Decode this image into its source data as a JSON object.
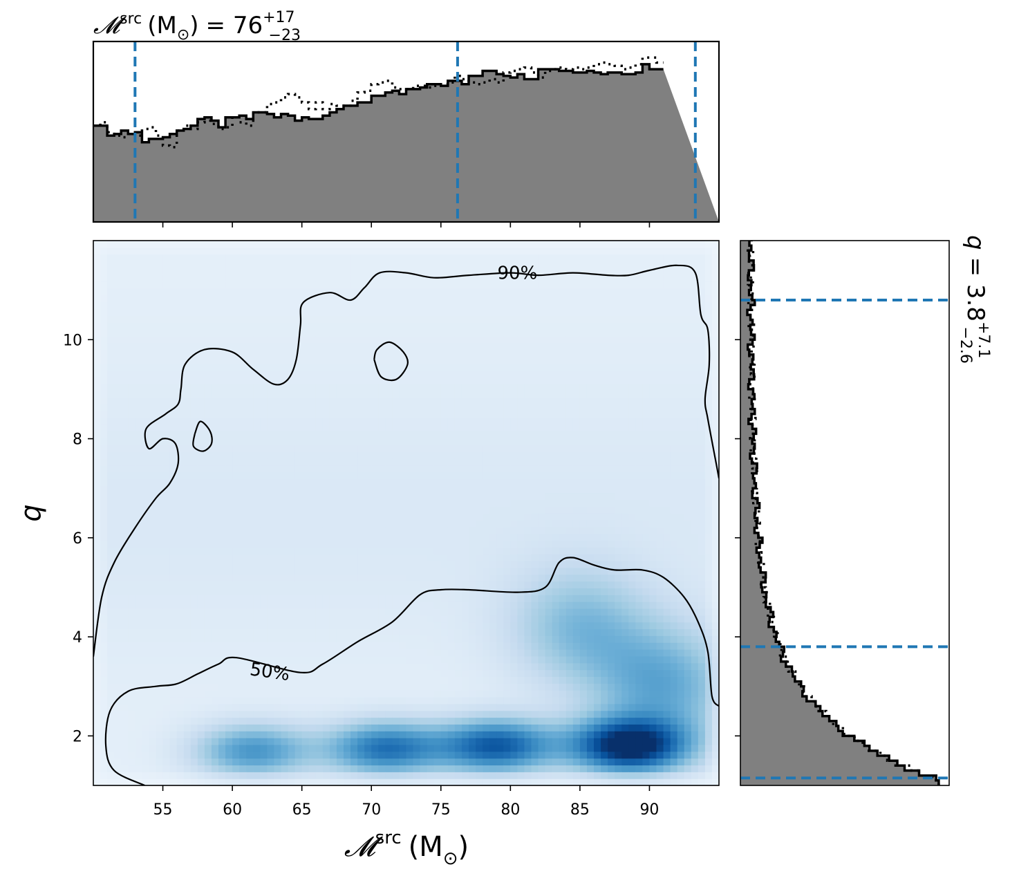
{
  "chart_data": {
    "type": "corner-plot",
    "joint": {
      "type": "heatmap",
      "xlabel": {
        "symbol": "𝓜",
        "sup": "src",
        "unit": "(M",
        "sub": "⊙",
        "close": ")"
      },
      "ylabel": "q",
      "xlim": [
        50,
        95
      ],
      "ylim": [
        1,
        12
      ],
      "xticks": [
        55,
        60,
        65,
        70,
        75,
        80,
        85,
        90
      ],
      "yticks": [
        2,
        4,
        6,
        8,
        10
      ],
      "colormap": [
        "#f7fbff",
        "#deebf7",
        "#c6dbef",
        "#9ecae1",
        "#6baed6",
        "#4292c6",
        "#2171b5",
        "#08519c",
        "#08306b"
      ],
      "density_modes": [
        {
          "x": 88.5,
          "y": 1.8,
          "weight": 1.0
        },
        {
          "x": 79.0,
          "y": 1.8,
          "weight": 0.8
        },
        {
          "x": 71.0,
          "y": 1.75,
          "weight": 0.7
        },
        {
          "x": 61.5,
          "y": 1.7,
          "weight": 0.55
        },
        {
          "x": 91.0,
          "y": 3.0,
          "weight": 0.45
        },
        {
          "x": 85.0,
          "y": 4.2,
          "weight": 0.35
        }
      ],
      "contours": [
        {
          "label": "90%",
          "label_pos": [
            80.5,
            11.35
          ],
          "paths": [
            [
              [
                50.0,
                3.6
              ],
              [
                50.6,
                4.8
              ],
              [
                51.5,
                5.5
              ],
              [
                53.0,
                6.2
              ],
              [
                54.5,
                6.8
              ],
              [
                55.5,
                7.1
              ],
              [
                56.1,
                7.5
              ],
              [
                55.9,
                7.9
              ],
              [
                55.0,
                8.0
              ],
              [
                54.0,
                7.8
              ],
              [
                53.8,
                8.2
              ],
              [
                55.2,
                8.5
              ],
              [
                56.1,
                8.7
              ],
              [
                56.3,
                9.0
              ],
              [
                56.6,
                9.5
              ],
              [
                58.0,
                9.8
              ],
              [
                60.0,
                9.75
              ],
              [
                61.5,
                9.4
              ],
              [
                63.0,
                9.1
              ],
              [
                64.0,
                9.2
              ],
              [
                64.6,
                9.6
              ],
              [
                64.9,
                10.3
              ],
              [
                65.1,
                10.75
              ],
              [
                67.0,
                10.95
              ],
              [
                68.5,
                10.8
              ],
              [
                69.5,
                11.05
              ],
              [
                70.6,
                11.35
              ],
              [
                72.5,
                11.35
              ],
              [
                74.5,
                11.25
              ],
              [
                77.0,
                11.3
              ],
              [
                80.0,
                11.35
              ],
              [
                82.0,
                11.3
              ],
              [
                84.5,
                11.35
              ],
              [
                87.0,
                11.3
              ],
              [
                88.5,
                11.3
              ],
              [
                90.0,
                11.4
              ],
              [
                92.0,
                11.5
              ],
              [
                93.3,
                11.35
              ],
              [
                93.7,
                10.5
              ],
              [
                94.2,
                10.2
              ],
              [
                94.3,
                9.5
              ],
              [
                94.0,
                8.8
              ],
              [
                94.2,
                8.4
              ],
              [
                94.8,
                7.5
              ],
              [
                95.0,
                7.2
              ]
            ]
          ]
        },
        {
          "label": "",
          "label_pos": null,
          "paths": [
            [
              [
                70.2,
                9.6
              ],
              [
                70.4,
                9.8
              ],
              [
                71.3,
                9.95
              ],
              [
                72.3,
                9.75
              ],
              [
                72.6,
                9.5
              ],
              [
                71.8,
                9.2
              ],
              [
                70.7,
                9.25
              ],
              [
                70.2,
                9.6
              ]
            ],
            [
              [
                57.3,
                8.1
              ],
              [
                57.7,
                8.35
              ],
              [
                58.4,
                8.15
              ],
              [
                58.5,
                7.9
              ],
              [
                57.9,
                7.75
              ],
              [
                57.2,
                7.85
              ],
              [
                57.3,
                8.1
              ]
            ]
          ]
        },
        {
          "label": "50%",
          "label_pos": [
            62.7,
            3.3
          ],
          "paths": [
            [
              [
                53.7,
                1.0
              ],
              [
                51.5,
                1.3
              ],
              [
                50.9,
                1.8
              ],
              [
                51.2,
                2.5
              ],
              [
                52.5,
                2.9
              ],
              [
                54.5,
                3.0
              ],
              [
                56.0,
                3.05
              ],
              [
                57.5,
                3.25
              ],
              [
                59.0,
                3.45
              ],
              [
                60.3,
                3.58
              ],
              [
                64.9,
                3.28
              ],
              [
                66.5,
                3.45
              ],
              [
                69.0,
                3.9
              ],
              [
                71.5,
                4.3
              ],
              [
                73.5,
                4.85
              ],
              [
                75.0,
                4.95
              ],
              [
                77.0,
                4.95
              ],
              [
                80.5,
                4.9
              ],
              [
                82.5,
                5.0
              ],
              [
                83.5,
                5.5
              ],
              [
                84.5,
                5.6
              ],
              [
                86.0,
                5.45
              ],
              [
                87.5,
                5.35
              ],
              [
                89.5,
                5.35
              ],
              [
                91.0,
                5.2
              ],
              [
                92.5,
                4.8
              ],
              [
                93.5,
                4.3
              ],
              [
                94.2,
                3.7
              ],
              [
                94.5,
                2.8
              ],
              [
                95.0,
                2.6
              ]
            ]
          ]
        }
      ]
    },
    "marginal_x": {
      "type": "step-histogram",
      "title": {
        "symbol": "𝓜",
        "sup": "src",
        "unit": "(M",
        "sub": "⊙",
        "close": ")",
        "eq": "= 76",
        "plus": "+17",
        "minus": "−23"
      },
      "median": 76,
      "quantile_lines": [
        53,
        76.2,
        93.3
      ],
      "bin_edges_start": 50,
      "bin_width": 1,
      "density_solid": [
        0.58,
        0.58,
        0.52,
        0.53,
        0.55,
        0.53,
        0.54,
        0.48,
        0.5,
        0.5,
        0.51,
        0.53,
        0.55,
        0.56,
        0.58,
        0.62,
        0.63,
        0.61,
        0.57,
        0.63,
        0.63,
        0.64,
        0.62,
        0.66,
        0.66,
        0.65,
        0.63,
        0.65,
        0.64,
        0.61,
        0.63,
        0.62,
        0.62,
        0.64,
        0.66,
        0.68,
        0.7,
        0.7,
        0.72,
        0.72,
        0.76,
        0.76,
        0.78,
        0.79,
        0.77,
        0.8,
        0.8,
        0.81,
        0.83,
        0.83,
        0.82,
        0.85,
        0.85,
        0.83,
        0.88,
        0.88,
        0.91,
        0.91,
        0.89,
        0.88,
        0.87,
        0.89,
        0.86,
        0.86,
        0.92,
        0.92,
        0.92,
        0.91,
        0.91,
        0.9,
        0.9,
        0.91,
        0.9,
        0.89,
        0.9,
        0.9,
        0.89,
        0.89,
        0.9,
        0.95,
        0.92,
        0.92
      ],
      "density_dotted": [
        0.58,
        0.6,
        0.54,
        0.52,
        0.51,
        0.53,
        0.52,
        0.56,
        0.57,
        0.52,
        0.46,
        0.45,
        0.55,
        0.58,
        0.56,
        0.6,
        0.61,
        0.59,
        0.56,
        0.57,
        0.63,
        0.6,
        0.58,
        0.66,
        0.66,
        0.71,
        0.72,
        0.75,
        0.77,
        0.75,
        0.72,
        0.68,
        0.72,
        0.68,
        0.71,
        0.7,
        0.7,
        0.73,
        0.78,
        0.79,
        0.83,
        0.84,
        0.85,
        0.81,
        0.8,
        0.8,
        0.82,
        0.82,
        0.81,
        0.82,
        0.83,
        0.84,
        0.88,
        0.86,
        0.84,
        0.83,
        0.84,
        0.86,
        0.84,
        0.9,
        0.91,
        0.92,
        0.93,
        0.9,
        0.87,
        0.91,
        0.92,
        0.93,
        0.92,
        0.93,
        0.92,
        0.93,
        0.95,
        0.96,
        0.95,
        0.94,
        0.92,
        0.93,
        0.95,
        0.99,
        0.99,
        0.96
      ],
      "ylim": [
        0,
        1
      ]
    },
    "marginal_y": {
      "type": "step-histogram",
      "label": {
        "q": "q",
        "eq": "= 3.8",
        "plus": "+7.1",
        "minus": "−2.6"
      },
      "median": 3.8,
      "quantile_lines": [
        1.15,
        3.8,
        10.8
      ],
      "bin_edges_start": 1,
      "bin_width": 0.1,
      "density_solid_peak_x": 1.15,
      "xlim": [
        0,
        1
      ]
    },
    "colors": {
      "histogram_fill": "#808080",
      "histogram_line": "#000000",
      "quantile_line": "#1f77b4",
      "contour_line": "#000000"
    }
  }
}
